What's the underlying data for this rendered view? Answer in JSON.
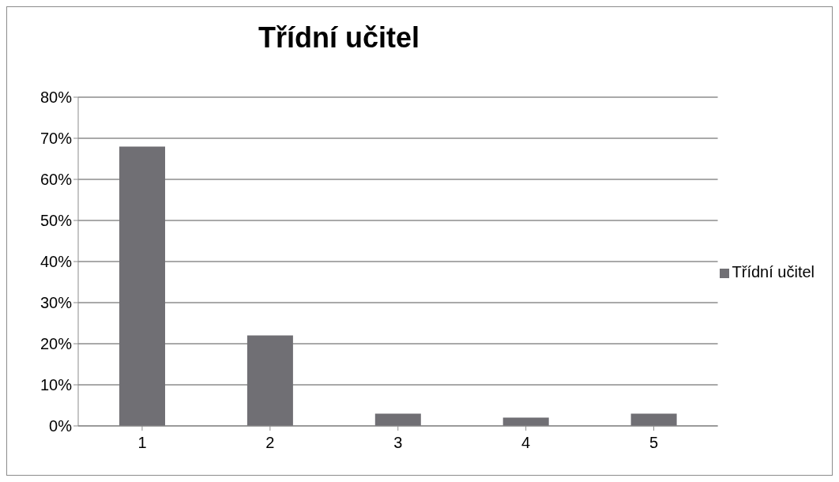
{
  "chart_data": {
    "type": "bar",
    "title": "Třídní učitel",
    "categories": [
      "1",
      "2",
      "3",
      "4",
      "5"
    ],
    "series": [
      {
        "name": "Třídní učitel",
        "color": "#706f74",
        "values": [
          68,
          22,
          3,
          2,
          3
        ]
      }
    ],
    "ylim": [
      0,
      80
    ],
    "yticks": [
      {
        "value": 0,
        "label": "0%"
      },
      {
        "value": 10,
        "label": "10%"
      },
      {
        "value": 20,
        "label": "20%"
      },
      {
        "value": 30,
        "label": "30%"
      },
      {
        "value": 40,
        "label": "40%"
      },
      {
        "value": 50,
        "label": "50%"
      },
      {
        "value": 60,
        "label": "60%"
      },
      {
        "value": 70,
        "label": "70%"
      },
      {
        "value": 80,
        "label": "80%"
      }
    ],
    "grid": "y",
    "legend": "right"
  }
}
